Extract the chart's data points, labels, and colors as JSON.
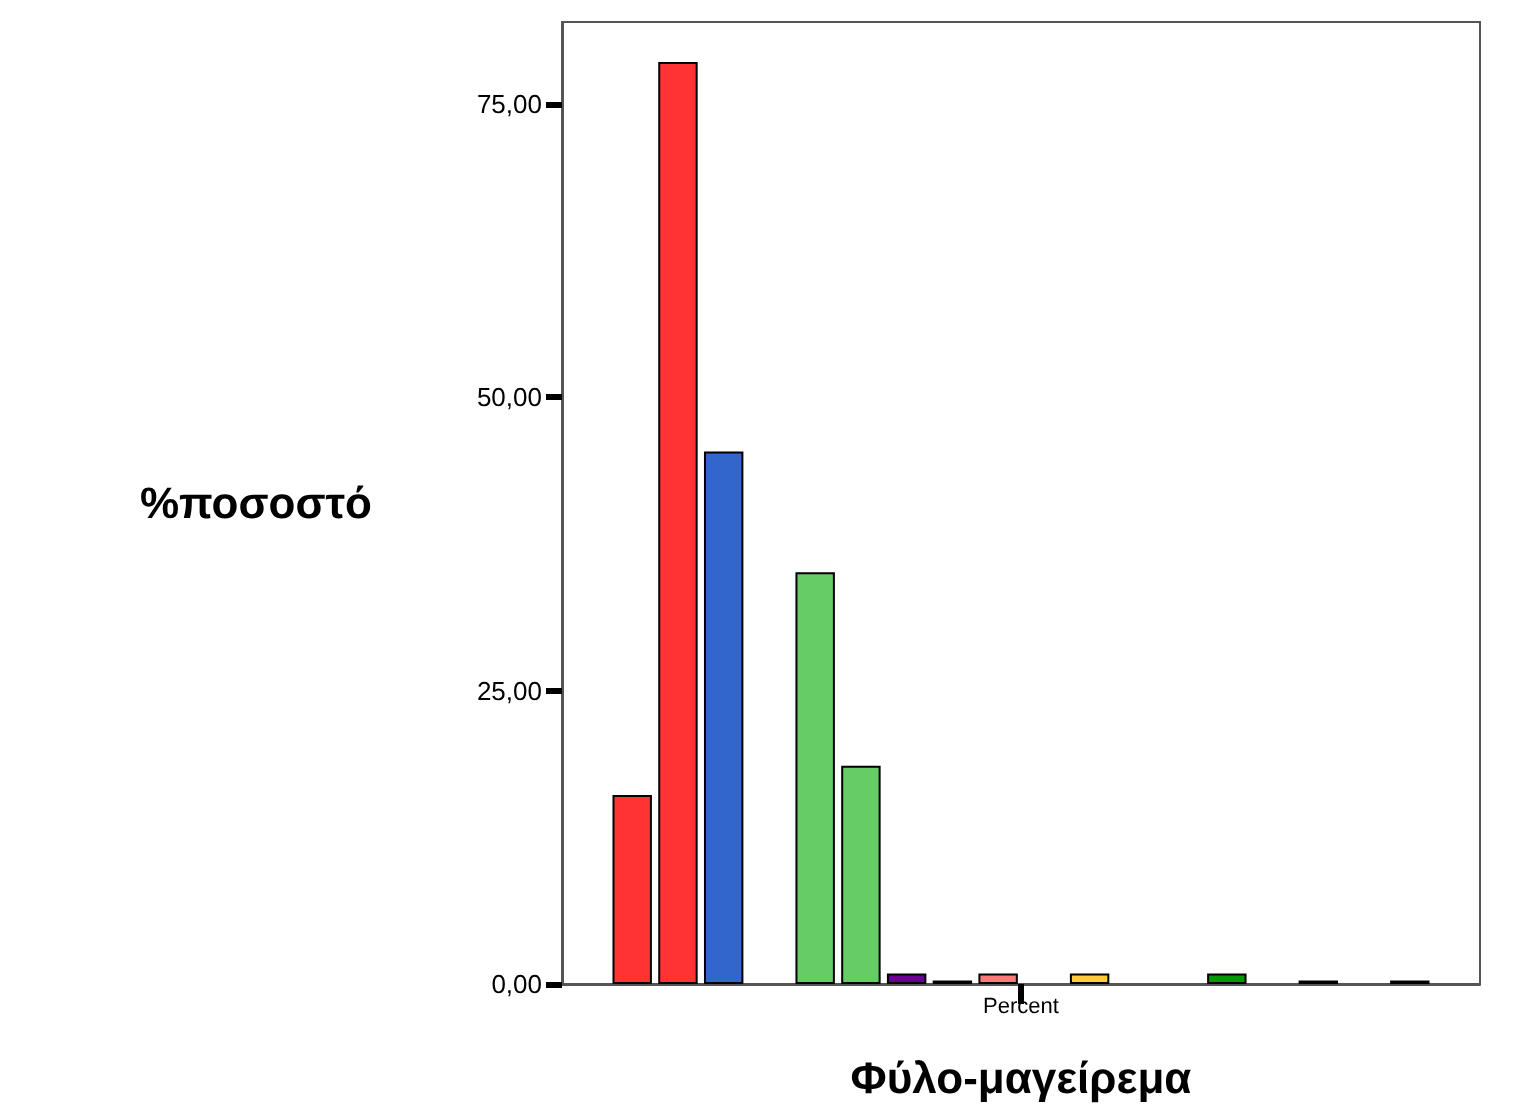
{
  "chart_data": {
    "type": "bar",
    "xlabel": "Φύλο-μαγείρεμα",
    "ylabel": "%ποσοστό",
    "categories": [
      "Percent"
    ],
    "ylim": [
      0,
      82
    ],
    "yticks": [
      {
        "value": 0,
        "label": "0,00"
      },
      {
        "value": 25,
        "label": "25,00"
      },
      {
        "value": 50,
        "label": "50,00"
      },
      {
        "value": 75,
        "label": "75,00"
      }
    ],
    "grid": false,
    "series": [
      {
        "color": "#ff3333",
        "values": [
          16.1
        ]
      },
      {
        "color": "#ff3333",
        "values": [
          78.6
        ]
      },
      {
        "color": "#3366cc",
        "values": [
          45.4
        ]
      },
      {
        "values": [
          null
        ]
      },
      {
        "color": "#66cc66",
        "values": [
          35.1
        ]
      },
      {
        "color": "#66cc66",
        "values": [
          18.6
        ]
      },
      {
        "color": "#660099",
        "values": [
          0.9
        ]
      },
      {
        "color": "#4b0073",
        "values": [
          0.3
        ]
      },
      {
        "color": "#ff7777",
        "values": [
          0.9
        ]
      },
      {
        "values": [
          null
        ]
      },
      {
        "color": "#ffcc33",
        "values": [
          0.9
        ]
      },
      {
        "values": [
          null
        ]
      },
      {
        "values": [
          null
        ]
      },
      {
        "color": "#009900",
        "values": [
          0.9
        ]
      },
      {
        "values": [
          null
        ]
      },
      {
        "color": "#996666",
        "values": [
          0.3
        ]
      },
      {
        "values": [
          null
        ]
      },
      {
        "color": "#cc6699",
        "values": [
          0.3
        ]
      }
    ]
  }
}
